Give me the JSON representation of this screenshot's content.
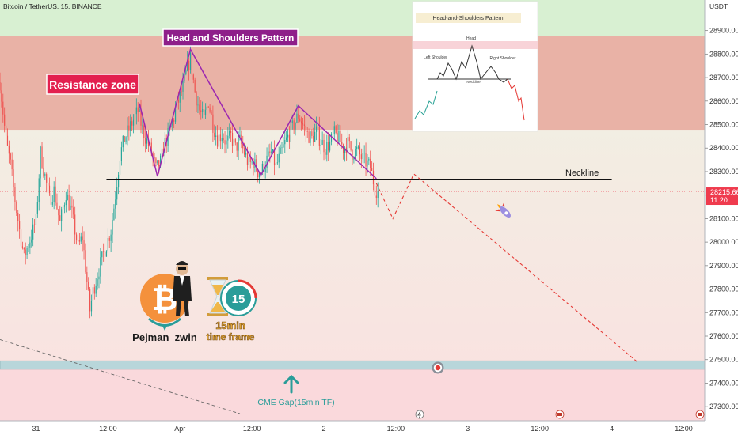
{
  "header": {
    "symbol_title": "Bitcoin / TetherUS, 15, BINANCE"
  },
  "chart_data": {
    "type": "candlestick",
    "y_axis": {
      "unit_label": "USDT",
      "ticks": [
        27300,
        27400,
        27500,
        27600,
        27700,
        27800,
        27900,
        28000,
        28100,
        28200,
        28300,
        28400,
        28500,
        28600,
        28700,
        28800,
        28900
      ],
      "tick_labels": [
        "27300.00",
        "27400.00",
        "27500.00",
        "27600.00",
        "27700.00",
        "27800.00",
        "27900.00",
        "28000.00",
        "28100.00",
        "28200.00",
        "28300.00",
        "28400.00",
        "28500.00",
        "28600.00",
        "28700.00",
        "28800.00",
        "28900.00"
      ],
      "range": [
        27240,
        29030
      ]
    },
    "x_axis": {
      "tick_labels": [
        "31",
        "12:00",
        "Apr",
        "12:00",
        "2",
        "12:00",
        "3",
        "12:00",
        "4",
        "12:00"
      ],
      "tick_index": [
        0,
        48,
        96,
        144,
        192,
        240,
        288,
        336,
        384,
        432
      ],
      "range_index": [
        -24,
        446
      ]
    },
    "current_price": {
      "label": "28215.66",
      "countdown": "11:20",
      "value": 28215.66
    },
    "zones": [
      {
        "name": "Resistance zone",
        "from": 28478,
        "to": 28876,
        "color": "#e9b2a6"
      },
      {
        "name": "CME Gap(15min TF)",
        "from": 27458,
        "to": 27495,
        "color": "#b8d6da"
      }
    ],
    "neckline": {
      "label": "Neckline",
      "price": 28267,
      "from_index": 47,
      "to_index": 384
    },
    "pattern_label": "Head and Shoulders Pattern",
    "pattern_points": [
      {
        "i": 69,
        "p": 28590
      },
      {
        "i": 81,
        "p": 28280
      },
      {
        "i": 103,
        "p": 28820
      },
      {
        "i": 150,
        "p": 28285
      },
      {
        "i": 175,
        "p": 28580
      },
      {
        "i": 227,
        "p": 28270
      }
    ],
    "projection": [
      {
        "i": 227,
        "p": 28250
      },
      {
        "i": 238,
        "p": 28100
      },
      {
        "i": 252,
        "p": 28290
      },
      {
        "i": 402,
        "p": 27485
      }
    ],
    "trend_line": [
      {
        "i": -24,
        "p": 27585
      },
      {
        "i": 136,
        "p": 27270
      }
    ],
    "candle_anchors": [
      [
        -24,
        28680
      ],
      [
        -20,
        28430
      ],
      [
        -17,
        28330
      ],
      [
        -14,
        28180
      ],
      [
        -11,
        28050
      ],
      [
        -8,
        27940
      ],
      [
        -4,
        28010
      ],
      [
        0,
        28090
      ],
      [
        3,
        28380
      ],
      [
        6,
        28280
      ],
      [
        9,
        28180
      ],
      [
        12,
        28220
      ],
      [
        16,
        28080
      ],
      [
        20,
        28210
      ],
      [
        24,
        28120
      ],
      [
        28,
        27980
      ],
      [
        31,
        28020
      ],
      [
        34,
        27830
      ],
      [
        36,
        27710
      ],
      [
        38,
        27790
      ],
      [
        41,
        27860
      ],
      [
        44,
        27930
      ],
      [
        47,
        27990
      ],
      [
        50,
        28050
      ],
      [
        53,
        28200
      ],
      [
        56,
        28370
      ],
      [
        59,
        28440
      ],
      [
        62,
        28480
      ],
      [
        65,
        28520
      ],
      [
        68,
        28560
      ],
      [
        71,
        28480
      ],
      [
        74,
        28430
      ],
      [
        77,
        28380
      ],
      [
        80,
        28310
      ],
      [
        83,
        28340
      ],
      [
        86,
        28420
      ],
      [
        89,
        28470
      ],
      [
        92,
        28530
      ],
      [
        95,
        28600
      ],
      [
        98,
        28660
      ],
      [
        101,
        28740
      ],
      [
        103,
        28780
      ],
      [
        106,
        28640
      ],
      [
        109,
        28560
      ],
      [
        112,
        28520
      ],
      [
        115,
        28600
      ],
      [
        118,
        28500
      ],
      [
        121,
        28440
      ],
      [
        124,
        28460
      ],
      [
        127,
        28420
      ],
      [
        130,
        28450
      ],
      [
        133,
        28400
      ],
      [
        136,
        28430
      ],
      [
        139,
        28380
      ],
      [
        142,
        28330
      ],
      [
        145,
        28340
      ],
      [
        148,
        28300
      ],
      [
        151,
        28310
      ],
      [
        154,
        28350
      ],
      [
        157,
        28380
      ],
      [
        160,
        28320
      ],
      [
        163,
        28370
      ],
      [
        166,
        28420
      ],
      [
        169,
        28460
      ],
      [
        172,
        28500
      ],
      [
        175,
        28540
      ],
      [
        178,
        28500
      ],
      [
        181,
        28460
      ],
      [
        184,
        28440
      ],
      [
        187,
        28470
      ],
      [
        190,
        28430
      ],
      [
        193,
        28400
      ],
      [
        196,
        28420
      ],
      [
        199,
        28460
      ],
      [
        202,
        28440
      ],
      [
        205,
        28400
      ],
      [
        208,
        28420
      ],
      [
        211,
        28380
      ],
      [
        214,
        28390
      ],
      [
        217,
        28360
      ],
      [
        220,
        28340
      ],
      [
        223,
        28320
      ],
      [
        226,
        28230
      ],
      [
        228,
        28216
      ]
    ]
  },
  "annotations": {
    "resistance_label": "Resistance zone",
    "pattern_title": "Head and Shoulders Pattern",
    "neckline_label": "Neckline",
    "cme_label": "CME Gap(15min TF)",
    "author": "Pejman_zwin",
    "timeframe_top": "15min",
    "timeframe_bottom": "time frame",
    "timer_number": "15"
  },
  "inset": {
    "title": "Head-and-Shoulders Pattern",
    "head": "Head",
    "left_shoulder": "Left Shoulder",
    "right_shoulder": "Right Shoulder",
    "neckline": "Neckline"
  },
  "colors": {
    "up": "#26a69a",
    "down": "#ef5350",
    "pattern": "#9c27b0",
    "projection": "#e53935",
    "label_red": "#e3204f",
    "label_purple": "#8e1f8a",
    "cme_text": "#2a9d99"
  }
}
